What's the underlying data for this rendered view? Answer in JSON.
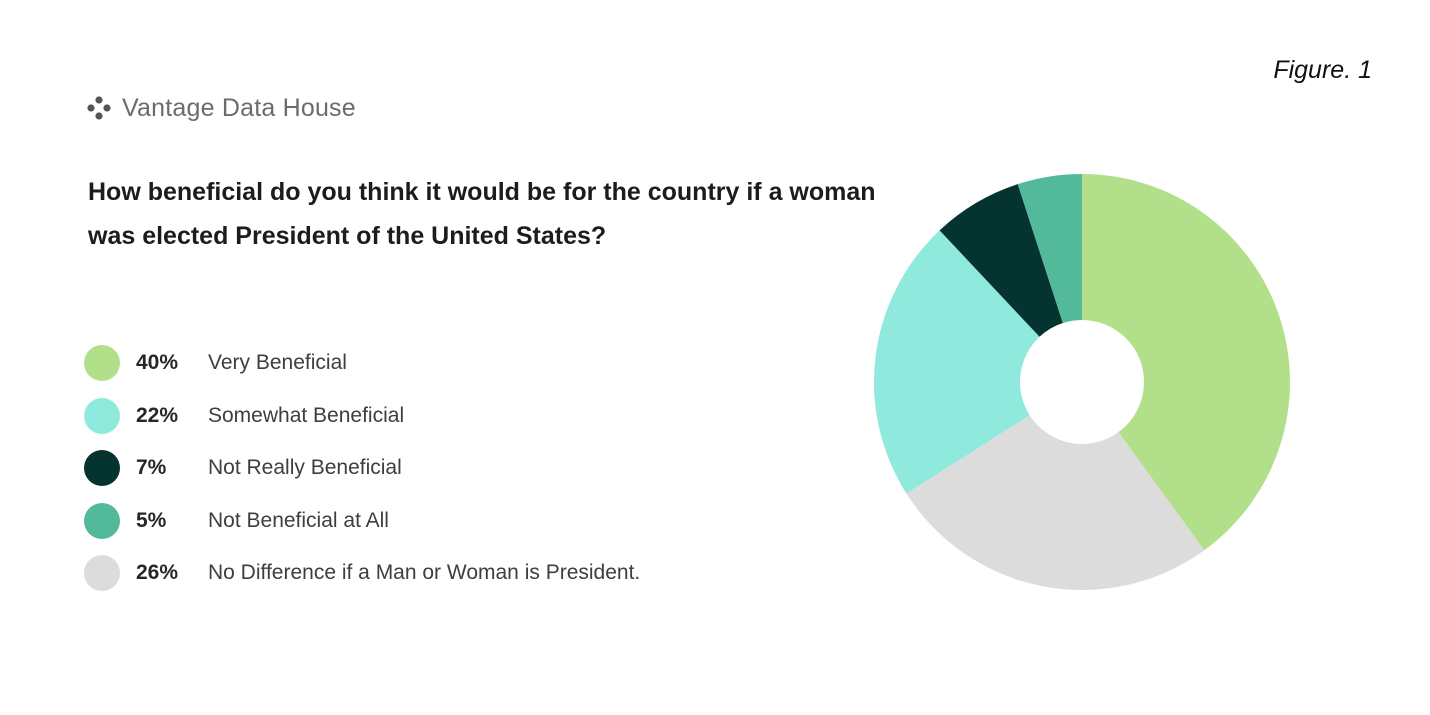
{
  "figure_label": "Figure. 1",
  "brand": {
    "name": "Vantage Data House",
    "icon": "four-dot-logo-icon"
  },
  "chart_data": {
    "type": "pie",
    "style": "donut",
    "title": "How beneficial do you think it would be for the country if a woman was elected President of the United States?",
    "unit": "%",
    "legend_position": "left",
    "slices": [
      {
        "label": "Very Beneficial",
        "value": 40,
        "display": "40%",
        "color": "#b2e08a"
      },
      {
        "label": "No Difference if a Man or Woman is President.",
        "value": 26,
        "display": "26%",
        "color": "#dcdcdc"
      },
      {
        "label": "Somewhat Beneficial",
        "value": 22,
        "display": "22%",
        "color": "#8fe9dd"
      },
      {
        "label": "Not Really Beneficial",
        "value": 7,
        "display": "7%",
        "color": "#053330"
      },
      {
        "label": "Not Beneficial at All",
        "value": 5,
        "display": "5%",
        "color": "#52b99b"
      }
    ],
    "legend": [
      {
        "display": "40%",
        "label": "Very Beneficial",
        "color": "#b2e08a"
      },
      {
        "display": "22%",
        "label": "Somewhat Beneficial",
        "color": "#8fe9dd"
      },
      {
        "display": "7%",
        "label": "Not Really Beneficial",
        "color": "#053330"
      },
      {
        "display": "5%",
        "label": "Not Beneficial at All",
        "color": "#52b99b"
      },
      {
        "display": "26%",
        "label": "No Difference if a Man or Woman is President.",
        "color": "#dcdcdc"
      }
    ]
  }
}
